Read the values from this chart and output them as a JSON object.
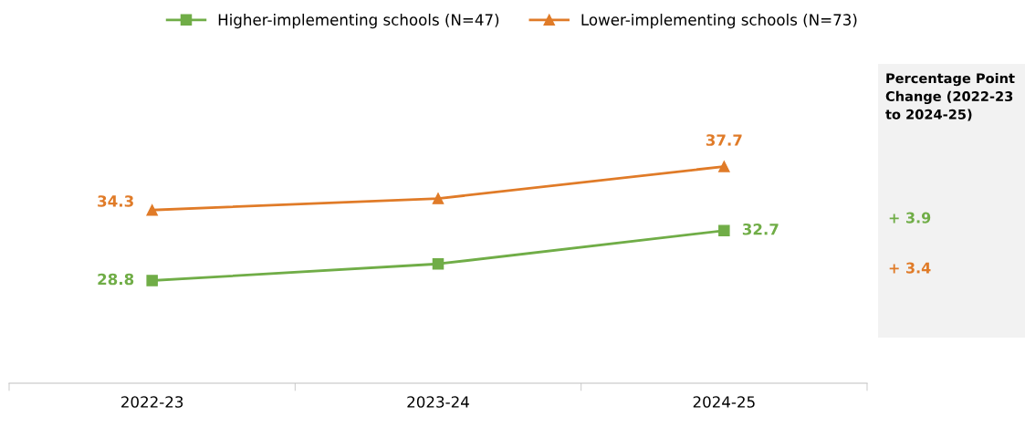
{
  "chart_data": {
    "type": "line",
    "categories": [
      "2022-23",
      "2023-24",
      "2024-25"
    ],
    "legend": "top",
    "grid": false,
    "series": [
      {
        "name": "Higher-implementing schools (N=47)",
        "color": "#70ad47",
        "marker": "square",
        "values": [
          28.8,
          30.1,
          32.7
        ],
        "value_labels": [
          "28.8",
          null,
          "32.7"
        ]
      },
      {
        "name": "Lower-implementing schools (N=73)",
        "color": "#e07b28",
        "marker": "triangle",
        "values": [
          34.3,
          35.2,
          37.7
        ],
        "value_labels": [
          "34.3",
          null,
          "37.7"
        ]
      }
    ],
    "annotations": [
      "Percentage Point Change (2022-23 to 2024-25)",
      "+ 3.9",
      "+ 3.4"
    ]
  }
}
